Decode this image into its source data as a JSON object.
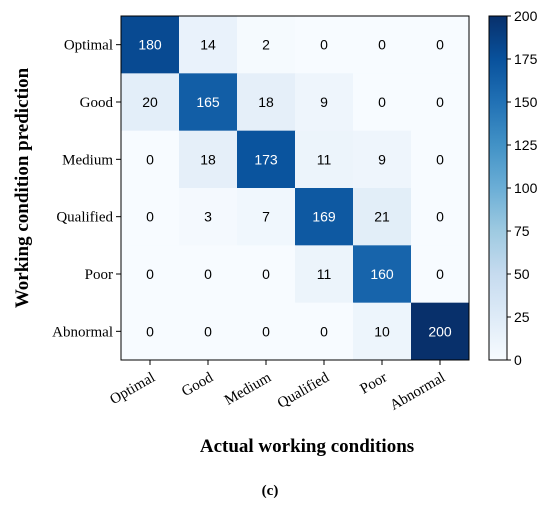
{
  "chart_data": {
    "type": "heatmap",
    "title": "",
    "xlabel": "Actual working conditions",
    "ylabel": "Working condition prediction",
    "panel_label": "(c)",
    "x_categories": [
      "Optimal",
      "Good",
      "Medium",
      "Qualified",
      "Poor",
      "Abnormal"
    ],
    "y_categories": [
      "Optimal",
      "Good",
      "Medium",
      "Qualified",
      "Poor",
      "Abnormal"
    ],
    "values": [
      [
        180,
        14,
        2,
        0,
        0,
        0
      ],
      [
        20,
        165,
        18,
        9,
        0,
        0
      ],
      [
        0,
        18,
        173,
        11,
        9,
        0
      ],
      [
        0,
        3,
        7,
        169,
        21,
        0
      ],
      [
        0,
        0,
        0,
        11,
        160,
        0
      ],
      [
        0,
        0,
        0,
        0,
        10,
        200
      ]
    ],
    "colorbar": {
      "min": 0,
      "max": 200,
      "ticks": [
        0,
        25,
        50,
        75,
        100,
        125,
        150,
        175,
        200
      ],
      "colormap": "Blues"
    },
    "text_color_dark": "#000000",
    "text_color_light": "#ffffff"
  }
}
